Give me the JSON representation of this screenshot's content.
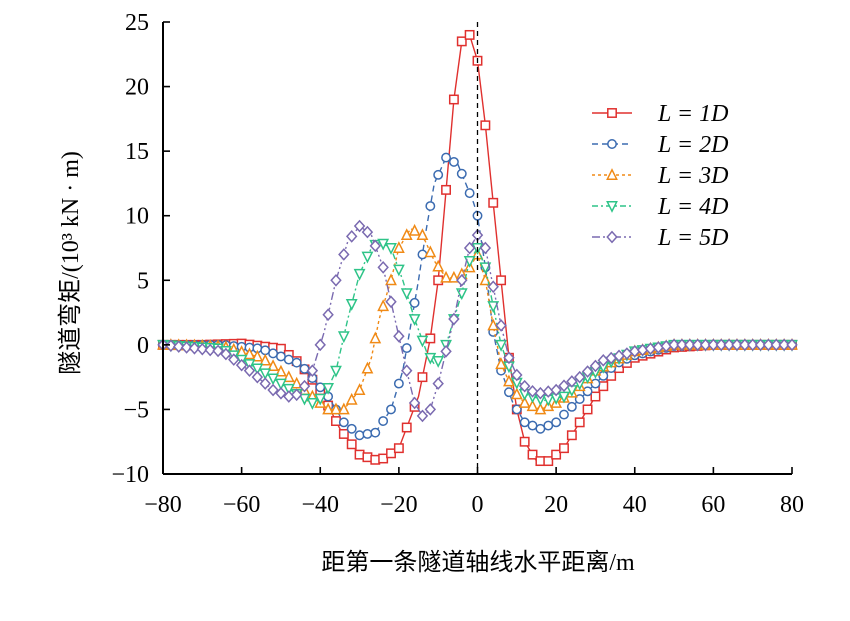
{
  "chart_data": {
    "type": "line",
    "title": "",
    "xlabel": "距第一条隧道轴线水平距离/m",
    "ylabel": "隧道弯矩/(10³ kN · m)",
    "xlim": [
      -80,
      80
    ],
    "ylim": [
      -10,
      25
    ],
    "x_ticks": [
      -80,
      -60,
      -40,
      -20,
      0,
      20,
      40,
      60,
      80
    ],
    "y_ticks": [
      -10,
      -5,
      0,
      5,
      10,
      15,
      20,
      25
    ],
    "x_tick_labels": [
      "−80",
      "−60",
      "−40",
      "−20",
      "0",
      "20",
      "40",
      "60",
      "80"
    ],
    "y_tick_labels": [
      "−10",
      "−5",
      "0",
      "5",
      "10",
      "15",
      "20",
      "25"
    ],
    "grid": false,
    "legend_position": "right",
    "reference_line_x": 0,
    "series": [
      {
        "name": "L = 1D",
        "color": "#e0302e",
        "marker": "square",
        "dash": "",
        "points": [
          [
            -80,
            0
          ],
          [
            -70,
            0
          ],
          [
            -60,
            0.1
          ],
          [
            -50,
            -0.3
          ],
          [
            -45,
            -1.5
          ],
          [
            -40,
            -3.5
          ],
          [
            -35,
            -6.5
          ],
          [
            -30,
            -8.5
          ],
          [
            -25,
            -9
          ],
          [
            -20,
            -8
          ],
          [
            -15,
            -4
          ],
          [
            -12,
            0.5
          ],
          [
            -10,
            5
          ],
          [
            -8,
            12
          ],
          [
            -6,
            19
          ],
          [
            -4,
            23.5
          ],
          [
            -2,
            24
          ],
          [
            0,
            22
          ],
          [
            2,
            17
          ],
          [
            4,
            11
          ],
          [
            6,
            5
          ],
          [
            8,
            -1
          ],
          [
            10,
            -5
          ],
          [
            12,
            -7.5
          ],
          [
            15,
            -9
          ],
          [
            18,
            -9
          ],
          [
            22,
            -8
          ],
          [
            26,
            -6
          ],
          [
            30,
            -4
          ],
          [
            35,
            -2
          ],
          [
            40,
            -1
          ],
          [
            50,
            -0.2
          ],
          [
            60,
            0
          ],
          [
            80,
            0
          ]
        ]
      },
      {
        "name": "L = 2D",
        "color": "#3b6bb0",
        "marker": "circle",
        "dash": "6,4",
        "points": [
          [
            -80,
            0
          ],
          [
            -65,
            0
          ],
          [
            -55,
            -0.3
          ],
          [
            -45,
            -1.5
          ],
          [
            -38,
            -4
          ],
          [
            -34,
            -6
          ],
          [
            -30,
            -7
          ],
          [
            -26,
            -6.8
          ],
          [
            -22,
            -5
          ],
          [
            -19,
            -2
          ],
          [
            -17,
            1.5
          ],
          [
            -15,
            5
          ],
          [
            -13,
            9
          ],
          [
            -11,
            12.5
          ],
          [
            -8,
            14.5
          ],
          [
            -5,
            14
          ],
          [
            -3,
            12.5
          ],
          [
            -1,
            11
          ],
          [
            0,
            10
          ],
          [
            2,
            6
          ],
          [
            4,
            1
          ],
          [
            6,
            -2
          ],
          [
            9,
            -4.5
          ],
          [
            12,
            -6
          ],
          [
            16,
            -6.5
          ],
          [
            20,
            -6
          ],
          [
            25,
            -4.5
          ],
          [
            30,
            -3
          ],
          [
            35,
            -1.5
          ],
          [
            40,
            -0.8
          ],
          [
            50,
            -0.1
          ],
          [
            60,
            0
          ],
          [
            80,
            0
          ]
        ]
      },
      {
        "name": "L = 3D",
        "color": "#f08a16",
        "marker": "triangle-up",
        "dash": "3,3",
        "points": [
          [
            -80,
            0
          ],
          [
            -65,
            -0.1
          ],
          [
            -55,
            -1
          ],
          [
            -48,
            -2.5
          ],
          [
            -42,
            -4
          ],
          [
            -38,
            -5
          ],
          [
            -34,
            -5
          ],
          [
            -30,
            -3.5
          ],
          [
            -27,
            -1
          ],
          [
            -25,
            2
          ],
          [
            -22,
            5
          ],
          [
            -20,
            7.5
          ],
          [
            -17,
            9
          ],
          [
            -14,
            8.5
          ],
          [
            -11,
            6.5
          ],
          [
            -8,
            5.2
          ],
          [
            -5,
            5.2
          ],
          [
            -2,
            6
          ],
          [
            0,
            7
          ],
          [
            2,
            5
          ],
          [
            4,
            1.5
          ],
          [
            6,
            -1.5
          ],
          [
            9,
            -3.5
          ],
          [
            12,
            -4.5
          ],
          [
            16,
            -5
          ],
          [
            20,
            -4.5
          ],
          [
            25,
            -3.5
          ],
          [
            30,
            -2
          ],
          [
            35,
            -1.2
          ],
          [
            40,
            -0.5
          ],
          [
            50,
            0
          ],
          [
            80,
            0
          ]
        ]
      },
      {
        "name": "L = 4D",
        "color": "#2ec488",
        "marker": "triangle-down",
        "dash": "6,3,2,3",
        "points": [
          [
            -80,
            0
          ],
          [
            -65,
            -0.3
          ],
          [
            -55,
            -2
          ],
          [
            -50,
            -3
          ],
          [
            -45,
            -4
          ],
          [
            -42,
            -4.5
          ],
          [
            -39,
            -4
          ],
          [
            -36,
            -2
          ],
          [
            -33,
            2
          ],
          [
            -30,
            5.5
          ],
          [
            -27,
            7.5
          ],
          [
            -25,
            8
          ],
          [
            -22,
            7.5
          ],
          [
            -19,
            5
          ],
          [
            -16,
            2
          ],
          [
            -13,
            -0.5
          ],
          [
            -11,
            -1.5
          ],
          [
            -9,
            -1
          ],
          [
            -7,
            1
          ],
          [
            -4,
            4
          ],
          [
            -2,
            6.5
          ],
          [
            0,
            7.5
          ],
          [
            2,
            6
          ],
          [
            4,
            3
          ],
          [
            6,
            0
          ],
          [
            9,
            -2.5
          ],
          [
            12,
            -3.8
          ],
          [
            17,
            -4.3
          ],
          [
            22,
            -4
          ],
          [
            28,
            -2.5
          ],
          [
            34,
            -1.3
          ],
          [
            40,
            -0.5
          ],
          [
            50,
            0
          ],
          [
            80,
            0
          ]
        ]
      },
      {
        "name": "L = 5D",
        "color": "#7a6ab0",
        "marker": "diamond",
        "dash": "8,3,2,3,2,3",
        "points": [
          [
            -80,
            0
          ],
          [
            -65,
            -0.5
          ],
          [
            -58,
            -2
          ],
          [
            -52,
            -3.5
          ],
          [
            -48,
            -4
          ],
          [
            -45,
            -3.8
          ],
          [
            -42,
            -2
          ],
          [
            -39,
            1
          ],
          [
            -36,
            5
          ],
          [
            -33,
            8
          ],
          [
            -30,
            9.2
          ],
          [
            -27,
            8.5
          ],
          [
            -24,
            6
          ],
          [
            -21,
            2
          ],
          [
            -18,
            -2
          ],
          [
            -16,
            -4.5
          ],
          [
            -14,
            -5.5
          ],
          [
            -12,
            -5
          ],
          [
            -10,
            -3
          ],
          [
            -8,
            -0.5
          ],
          [
            -6,
            2
          ],
          [
            -4,
            5
          ],
          [
            -2,
            7.5
          ],
          [
            0,
            8.5
          ],
          [
            2,
            7.5
          ],
          [
            4,
            4.5
          ],
          [
            6,
            1.5
          ],
          [
            8,
            -1
          ],
          [
            11,
            -3
          ],
          [
            15,
            -3.8
          ],
          [
            20,
            -3.5
          ],
          [
            26,
            -2.5
          ],
          [
            32,
            -1.2
          ],
          [
            40,
            -0.5
          ],
          [
            50,
            0
          ],
          [
            80,
            0
          ]
        ]
      }
    ]
  }
}
